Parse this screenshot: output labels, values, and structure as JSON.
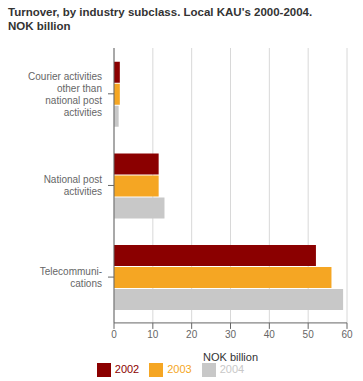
{
  "chart_data": {
    "type": "bar",
    "orientation": "horizontal",
    "title": "Turnover, by industry subclass. Local KAU's 2000-2004.",
    "subtitle": "NOK billion",
    "categories": [
      "Telecommuni-\ncations",
      "National post\nactivities",
      "Courier activities\nother than\nnational post\nactivities"
    ],
    "series": [
      {
        "name": "2002",
        "color": "#8B0000",
        "values": [
          52.0,
          11.5,
          1.5
        ]
      },
      {
        "name": "2003",
        "color": "#F5A623",
        "values": [
          56.0,
          11.5,
          1.5
        ]
      },
      {
        "name": "2004",
        "color": "#C8C8C8",
        "values": [
          59.0,
          13.0,
          1.2
        ]
      }
    ],
    "xlabel": "NOK billion",
    "xlim": [
      0,
      60
    ],
    "xticks": [
      0,
      10,
      20,
      30,
      40,
      50,
      60
    ],
    "grid": true,
    "legend": "bottom"
  }
}
